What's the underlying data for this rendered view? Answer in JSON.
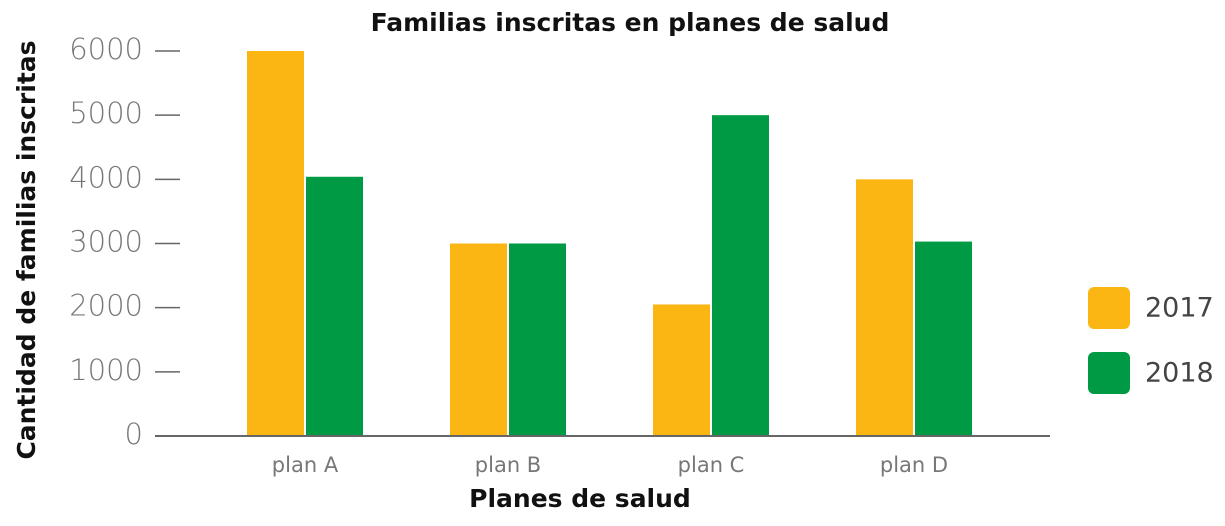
{
  "chart_data": {
    "type": "bar",
    "title": "Familias inscritas en planes de salud",
    "x_label": "Planes de salud",
    "y_label": "Cantidad de familias inscritas",
    "categories": [
      "plan A",
      "plan B",
      "plan C",
      "plan D"
    ],
    "series": [
      {
        "name": "2017",
        "color": "#fbb614",
        "values": [
          6000,
          3000,
          2050,
          4000
        ]
      },
      {
        "name": "2018",
        "color": "#009a44",
        "values": [
          4040,
          3000,
          5000,
          3030
        ]
      }
    ],
    "ylim": [
      0,
      6000
    ],
    "yticks": [
      0,
      1000,
      2000,
      3000,
      4000,
      5000,
      6000
    ],
    "legend": "right"
  }
}
